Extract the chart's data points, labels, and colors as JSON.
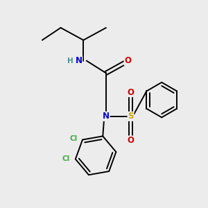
{
  "background_color": "#ececec",
  "figsize": [
    3.0,
    3.0
  ],
  "dpi": 100,
  "bond_color": "#000000",
  "bond_width": 1.4,
  "atom_colors": {
    "N": "#0000cc",
    "H": "#4a9090",
    "O": "#cc0000",
    "S": "#ccaa00",
    "Cl": "#44aa44",
    "C": "#000000"
  },
  "font_size_atom": 8.5,
  "font_size_small": 7.5,
  "xlim": [
    0,
    10
  ],
  "ylim": [
    0,
    10
  ]
}
